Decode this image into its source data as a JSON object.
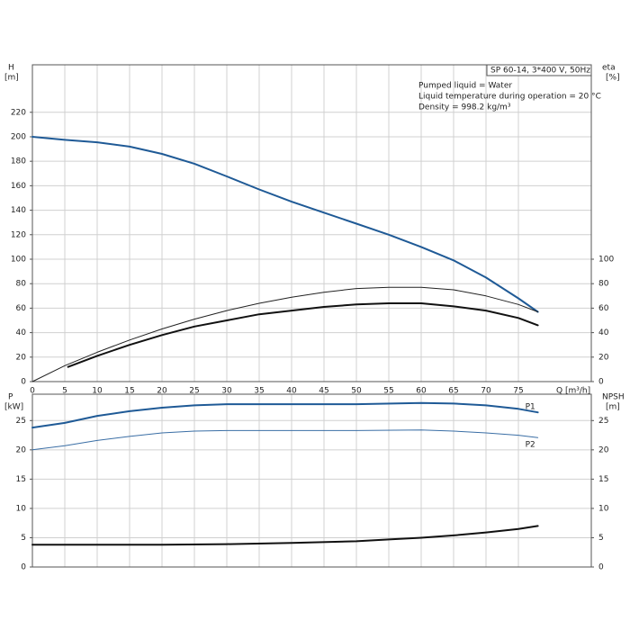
{
  "chart_data": [
    {
      "type": "line",
      "box_label": "SP 60-14, 3*400 V, 50Hz",
      "annotations": [
        "Pumped liquid = Water",
        "Liquid temperature during operation = 20 °C",
        "Density = 998.2 kg/m³"
      ],
      "ylabel": "H",
      "yunit": "[m]",
      "y2label": "eta",
      "y2unit": "[%]",
      "xlabel": "Q [m³/h]",
      "xlim": [
        0,
        86.25
      ],
      "xticks": [
        0,
        5,
        10,
        15,
        20,
        25,
        30,
        35,
        40,
        45,
        50,
        55,
        60,
        65,
        70,
        75
      ],
      "ylim": [
        0,
        258.8
      ],
      "yticks": [
        0,
        20,
        40,
        60,
        80,
        100,
        120,
        140,
        160,
        180,
        200,
        220
      ],
      "y2lim": [
        0,
        258.8
      ],
      "y2ticks": [
        0,
        20,
        40,
        60,
        80,
        100
      ],
      "grid": true,
      "series": [
        {
          "color": "#1f5a96",
          "width": 2,
          "axis": "y",
          "x": [
            0,
            5,
            10,
            15,
            20,
            25,
            30,
            35,
            40,
            45,
            50,
            55,
            60,
            65,
            70,
            75,
            78
          ],
          "values": [
            200,
            197.5,
            195.5,
            192,
            186,
            178,
            167.6,
            157,
            147,
            138,
            129,
            120,
            110,
            99,
            85,
            68,
            57
          ]
        },
        {
          "color": "#222222",
          "width": 1,
          "axis": "y2",
          "x": [
            0,
            5,
            10,
            15,
            20,
            25,
            30,
            35,
            40,
            45,
            50,
            55,
            60,
            65,
            70,
            75,
            78
          ],
          "values": [
            0,
            13,
            24,
            34,
            43,
            51,
            58,
            64,
            69,
            73,
            76,
            77,
            77,
            75,
            70,
            63,
            57
          ]
        },
        {
          "color": "#111111",
          "width": 2,
          "axis": "y2",
          "x": [
            5.5,
            10,
            15,
            20,
            25,
            30,
            35,
            40,
            45,
            50,
            55,
            60,
            65,
            70,
            75,
            78
          ],
          "values": [
            12,
            21,
            30,
            38,
            45,
            50,
            55,
            58,
            61,
            63,
            64,
            64,
            61.5,
            58,
            52,
            46
          ]
        }
      ]
    },
    {
      "type": "line",
      "ylabel": "P",
      "yunit": "[kW]",
      "y2label": "NPSH",
      "y2unit": "[m]",
      "xlim": [
        0,
        86.25
      ],
      "xticks": [
        0,
        5,
        10,
        15,
        20,
        25,
        30,
        35,
        40,
        45,
        50,
        55,
        60,
        65,
        70,
        75
      ],
      "ylim": [
        0,
        29.5
      ],
      "yticks": [
        0,
        5,
        10,
        15,
        20,
        25
      ],
      "y2lim": [
        0,
        29.5
      ],
      "y2ticks": [
        0,
        5,
        10,
        15,
        20,
        25
      ],
      "grid": true,
      "series": [
        {
          "name": "P1",
          "color": "#1f5a96",
          "width": 2,
          "axis": "y",
          "x": [
            0,
            5,
            10,
            15,
            20,
            25,
            30,
            40,
            50,
            60,
            65,
            70,
            75,
            78
          ],
          "values": [
            23.8,
            24.6,
            25.8,
            26.6,
            27.2,
            27.6,
            27.8,
            27.8,
            27.8,
            28,
            27.9,
            27.6,
            27,
            26.4
          ]
        },
        {
          "name": "P2",
          "color": "#3a6ea5",
          "width": 1,
          "axis": "y",
          "x": [
            0,
            5,
            10,
            15,
            20,
            25,
            30,
            40,
            50,
            60,
            65,
            70,
            75,
            78
          ],
          "values": [
            20,
            20.7,
            21.6,
            22.3,
            22.9,
            23.2,
            23.3,
            23.3,
            23.3,
            23.4,
            23.2,
            22.9,
            22.5,
            22.1
          ]
        },
        {
          "color": "#111111",
          "width": 2,
          "axis": "y2",
          "x": [
            0,
            10,
            20,
            30,
            40,
            50,
            55,
            60,
            65,
            70,
            75,
            78
          ],
          "values": [
            3.8,
            3.8,
            3.8,
            3.9,
            4.1,
            4.4,
            4.7,
            5,
            5.4,
            5.9,
            6.5,
            7
          ]
        }
      ]
    }
  ]
}
